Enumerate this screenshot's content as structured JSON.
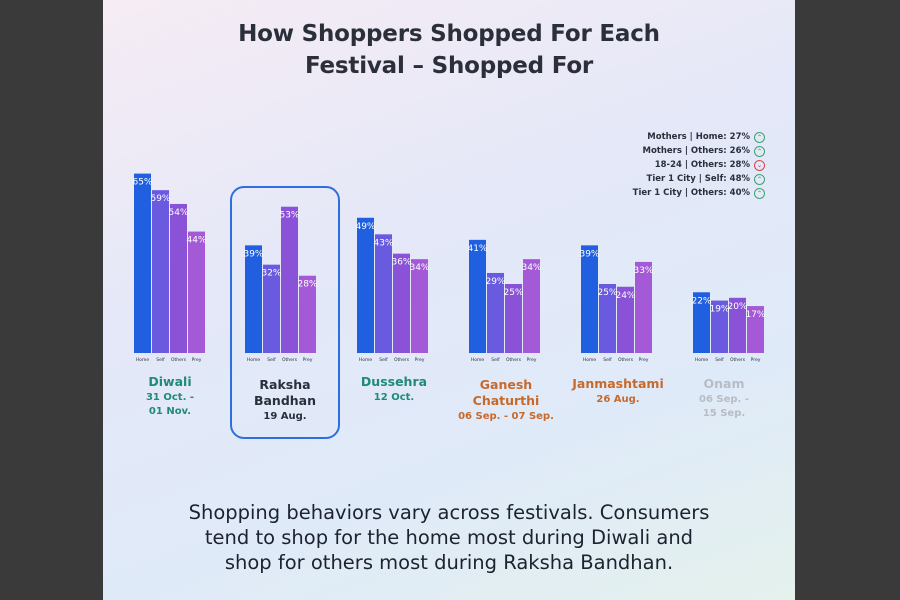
{
  "title_line1": "How Shoppers Shopped For Each",
  "title_line2": "Festival – Shopped For",
  "legend": [
    {
      "text": "Mothers | Home: 27%",
      "trend": "up"
    },
    {
      "text": "Mothers | Others: 26%",
      "trend": "up"
    },
    {
      "text": "18-24 | Others: 28%",
      "trend": "down"
    },
    {
      "text": "Tier 1 City | Self: 48%",
      "trend": "up"
    },
    {
      "text": "Tier 1 City | Others: 40%",
      "trend": "up"
    }
  ],
  "chart_data": {
    "type": "bar",
    "categories": [
      "Home",
      "Self",
      "Others",
      "Prey"
    ],
    "bar_colors": [
      "#1f5fe0",
      "#6a5ae0",
      "#8a52d6",
      "#a45ad6"
    ],
    "groups": [
      {
        "name": "Diwali",
        "date": "31 Oct. -",
        "date2": "01 Nov.",
        "values": [
          65,
          59,
          54,
          44
        ],
        "label_color": "#1f8a7a"
      },
      {
        "name": "Raksha",
        "name2": "Bandhan",
        "date": "19 Aug.",
        "values": [
          39,
          32,
          53,
          28
        ],
        "label_color": "#2a2f3a"
      },
      {
        "name": "Dussehra",
        "date": "12 Oct.",
        "values": [
          49,
          43,
          36,
          34
        ],
        "label_color": "#1f8a7a"
      },
      {
        "name": "Ganesh",
        "name2": "Chaturthi",
        "date": "06 Sep. - 07 Sep.",
        "values": [
          41,
          29,
          25,
          34
        ],
        "label_color": "#c8692a"
      },
      {
        "name": "Janmashtami",
        "date": "26 Aug.",
        "values": [
          39,
          25,
          24,
          33
        ],
        "label_color": "#c8692a"
      },
      {
        "name": "Onam",
        "date": "06 Sep. -",
        "date2": "15 Sep.",
        "values": [
          22,
          19,
          20,
          17
        ],
        "label_color": "#b8bcc4"
      }
    ],
    "value_suffix": "%"
  },
  "caption_line1": "Shopping behaviors vary across festivals. Consumers",
  "caption_line2": "tend to shop for the home most during Diwali and",
  "caption_line3": "shop for others most during Raksha Bandhan."
}
